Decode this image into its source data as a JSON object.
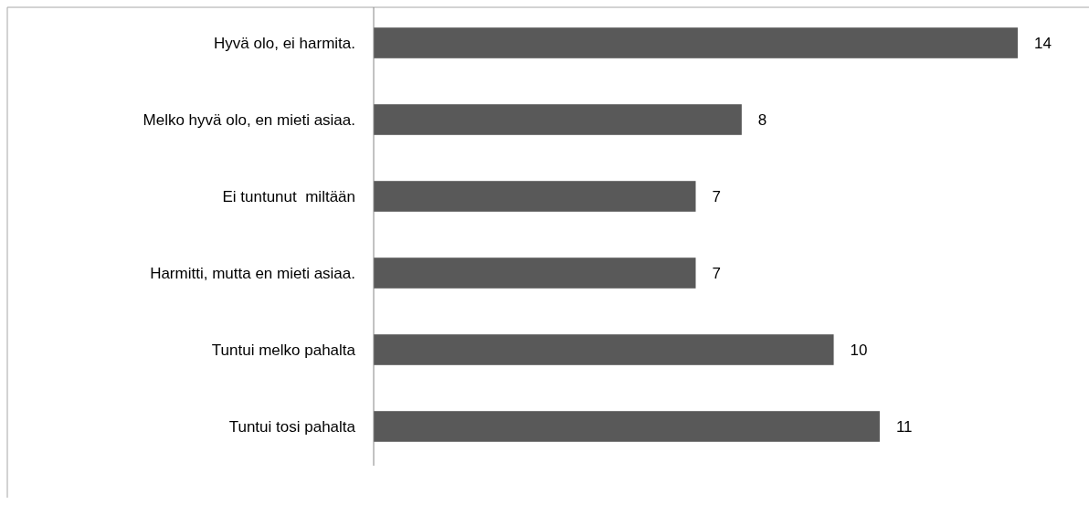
{
  "chart_data": {
    "type": "bar",
    "orientation": "horizontal",
    "categories": [
      "Hyvä olo, ei harmita.",
      "Melko hyvä olo, en mieti asiaa.",
      "Ei tuntunut  miltään",
      "Harmitti, mutta en mieti asiaa.",
      "Tuntui melko pahalta",
      "Tuntui tosi pahalta"
    ],
    "values": [
      14,
      8,
      7,
      7,
      10,
      11
    ],
    "color": "#595959",
    "data_labels": true
  }
}
